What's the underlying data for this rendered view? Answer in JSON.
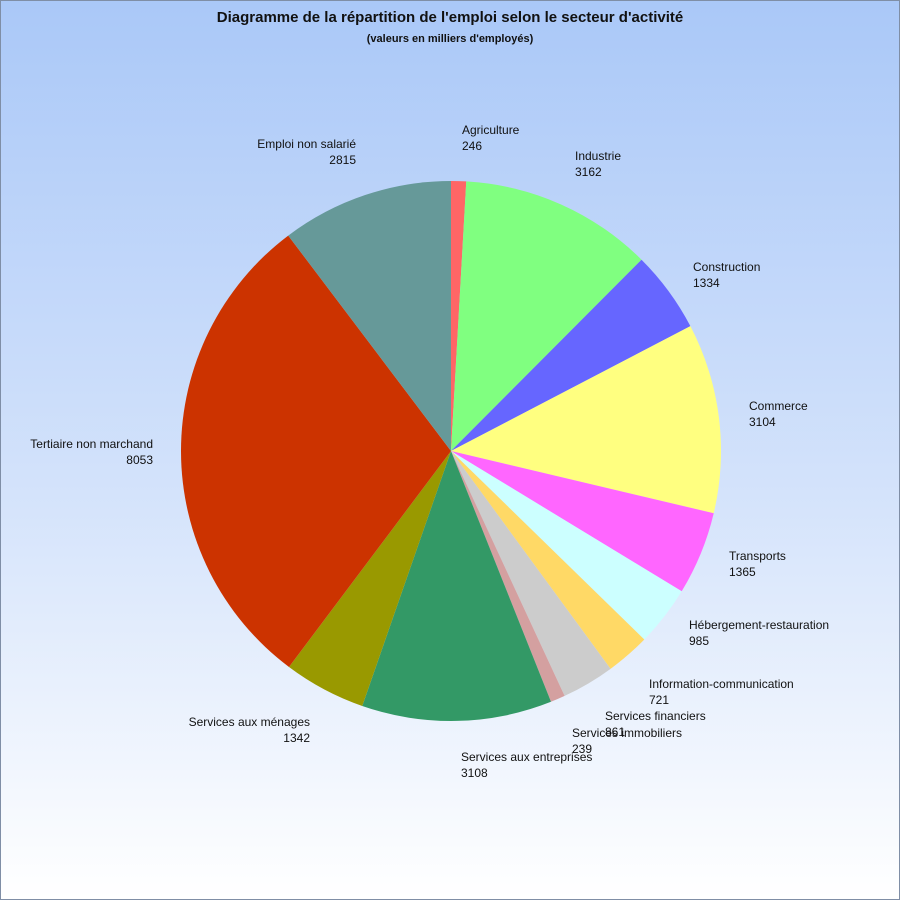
{
  "chart_data": {
    "type": "pie",
    "title": "Diagramme de la répartition de l'emploi selon le secteur d'activité",
    "subtitle": "(valeurs en milliers d'employés)",
    "slices": [
      {
        "label": "Agriculture",
        "value": 246,
        "color": "#ff6666"
      },
      {
        "label": "Industrie",
        "value": 3162,
        "color": "#80ff80"
      },
      {
        "label": "Construction",
        "value": 1334,
        "color": "#6666ff"
      },
      {
        "label": "Commerce",
        "value": 3104,
        "color": "#ffff80"
      },
      {
        "label": "Transports",
        "value": 1365,
        "color": "#ff66ff"
      },
      {
        "label": "Hébergement-restauration",
        "value": 985,
        "color": "#ccffff"
      },
      {
        "label": "Information-communication",
        "value": 721,
        "color": "#ffd966"
      },
      {
        "label": "Services financiers",
        "value": 861,
        "color": "#cccccc"
      },
      {
        "label": "Services immobiliers",
        "value": 239,
        "color": "#d4a0a0"
      },
      {
        "label": "Services aux entreprises",
        "value": 3108,
        "color": "#339966"
      },
      {
        "label": "Services aux ménages",
        "value": 1342,
        "color": "#999900"
      },
      {
        "label": "Tertiaire non marchand",
        "value": 8053,
        "color": "#cc3300"
      },
      {
        "label": "Emploi non salarié",
        "value": 2815,
        "color": "#669999"
      }
    ]
  }
}
